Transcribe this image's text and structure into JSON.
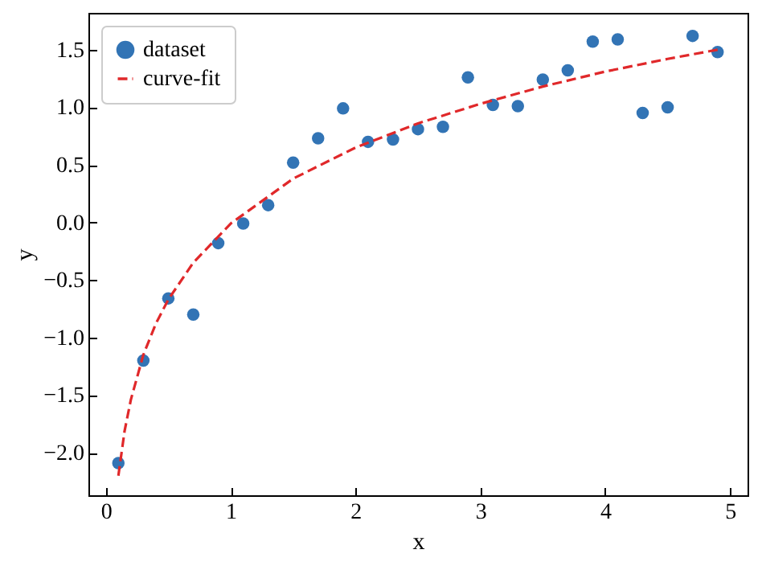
{
  "chart_data": {
    "type": "scatter",
    "xlabel": "x",
    "ylabel": "y",
    "legend": "top left",
    "x": [
      0.1,
      0.3,
      0.5,
      0.7,
      0.9,
      1.1,
      1.3,
      1.5,
      1.7,
      1.9,
      2.1,
      2.3,
      2.5,
      2.7,
      2.9,
      3.1,
      3.3,
      3.5,
      3.7,
      3.9,
      4.1,
      4.3,
      4.5,
      4.7,
      4.9
    ],
    "series": [
      {
        "name": "dataset",
        "marker": "circle",
        "color": "#3274b5",
        "values": [
          -2.09,
          -1.2,
          -0.66,
          -0.8,
          -0.18,
          -0.01,
          0.15,
          0.52,
          0.73,
          0.99,
          0.7,
          0.72,
          0.81,
          0.83,
          1.26,
          1.02,
          1.01,
          1.24,
          1.32,
          1.57,
          1.59,
          0.95,
          1.0,
          1.62,
          1.48
        ]
      },
      {
        "name": "curve-fit",
        "type": "line",
        "line_style": "dashed",
        "color": "#e0282a",
        "x": [
          0.1,
          0.15,
          0.2,
          0.3,
          0.4,
          0.5,
          0.7,
          1.0,
          1.5,
          2,
          2.5,
          3,
          3.5,
          4,
          4.5,
          4.9
        ],
        "values": [
          -2.2,
          -1.81,
          -1.54,
          -1.15,
          -0.88,
          -0.67,
          -0.35,
          -0.01,
          0.38,
          0.65,
          0.86,
          1.03,
          1.18,
          1.31,
          1.42,
          1.5
        ]
      }
    ],
    "xlim": [
      -0.14,
      5.14
    ],
    "xticks": [
      0,
      1,
      2,
      3,
      4,
      5
    ],
    "ylim": [
      -2.37,
      1.82
    ],
    "yticks": [
      {
        "value": -2,
        "label": "−2.0"
      },
      {
        "value": -1.5,
        "label": "−1.5"
      },
      {
        "value": -1,
        "label": "−1.0"
      },
      {
        "value": -0.5,
        "label": "−0.5"
      },
      {
        "value": 0,
        "label": "0.0"
      },
      {
        "value": 0.5,
        "label": "0.5"
      },
      {
        "value": 1,
        "label": "1.0"
      },
      {
        "value": 1.5,
        "label": "1.5"
      }
    ]
  }
}
